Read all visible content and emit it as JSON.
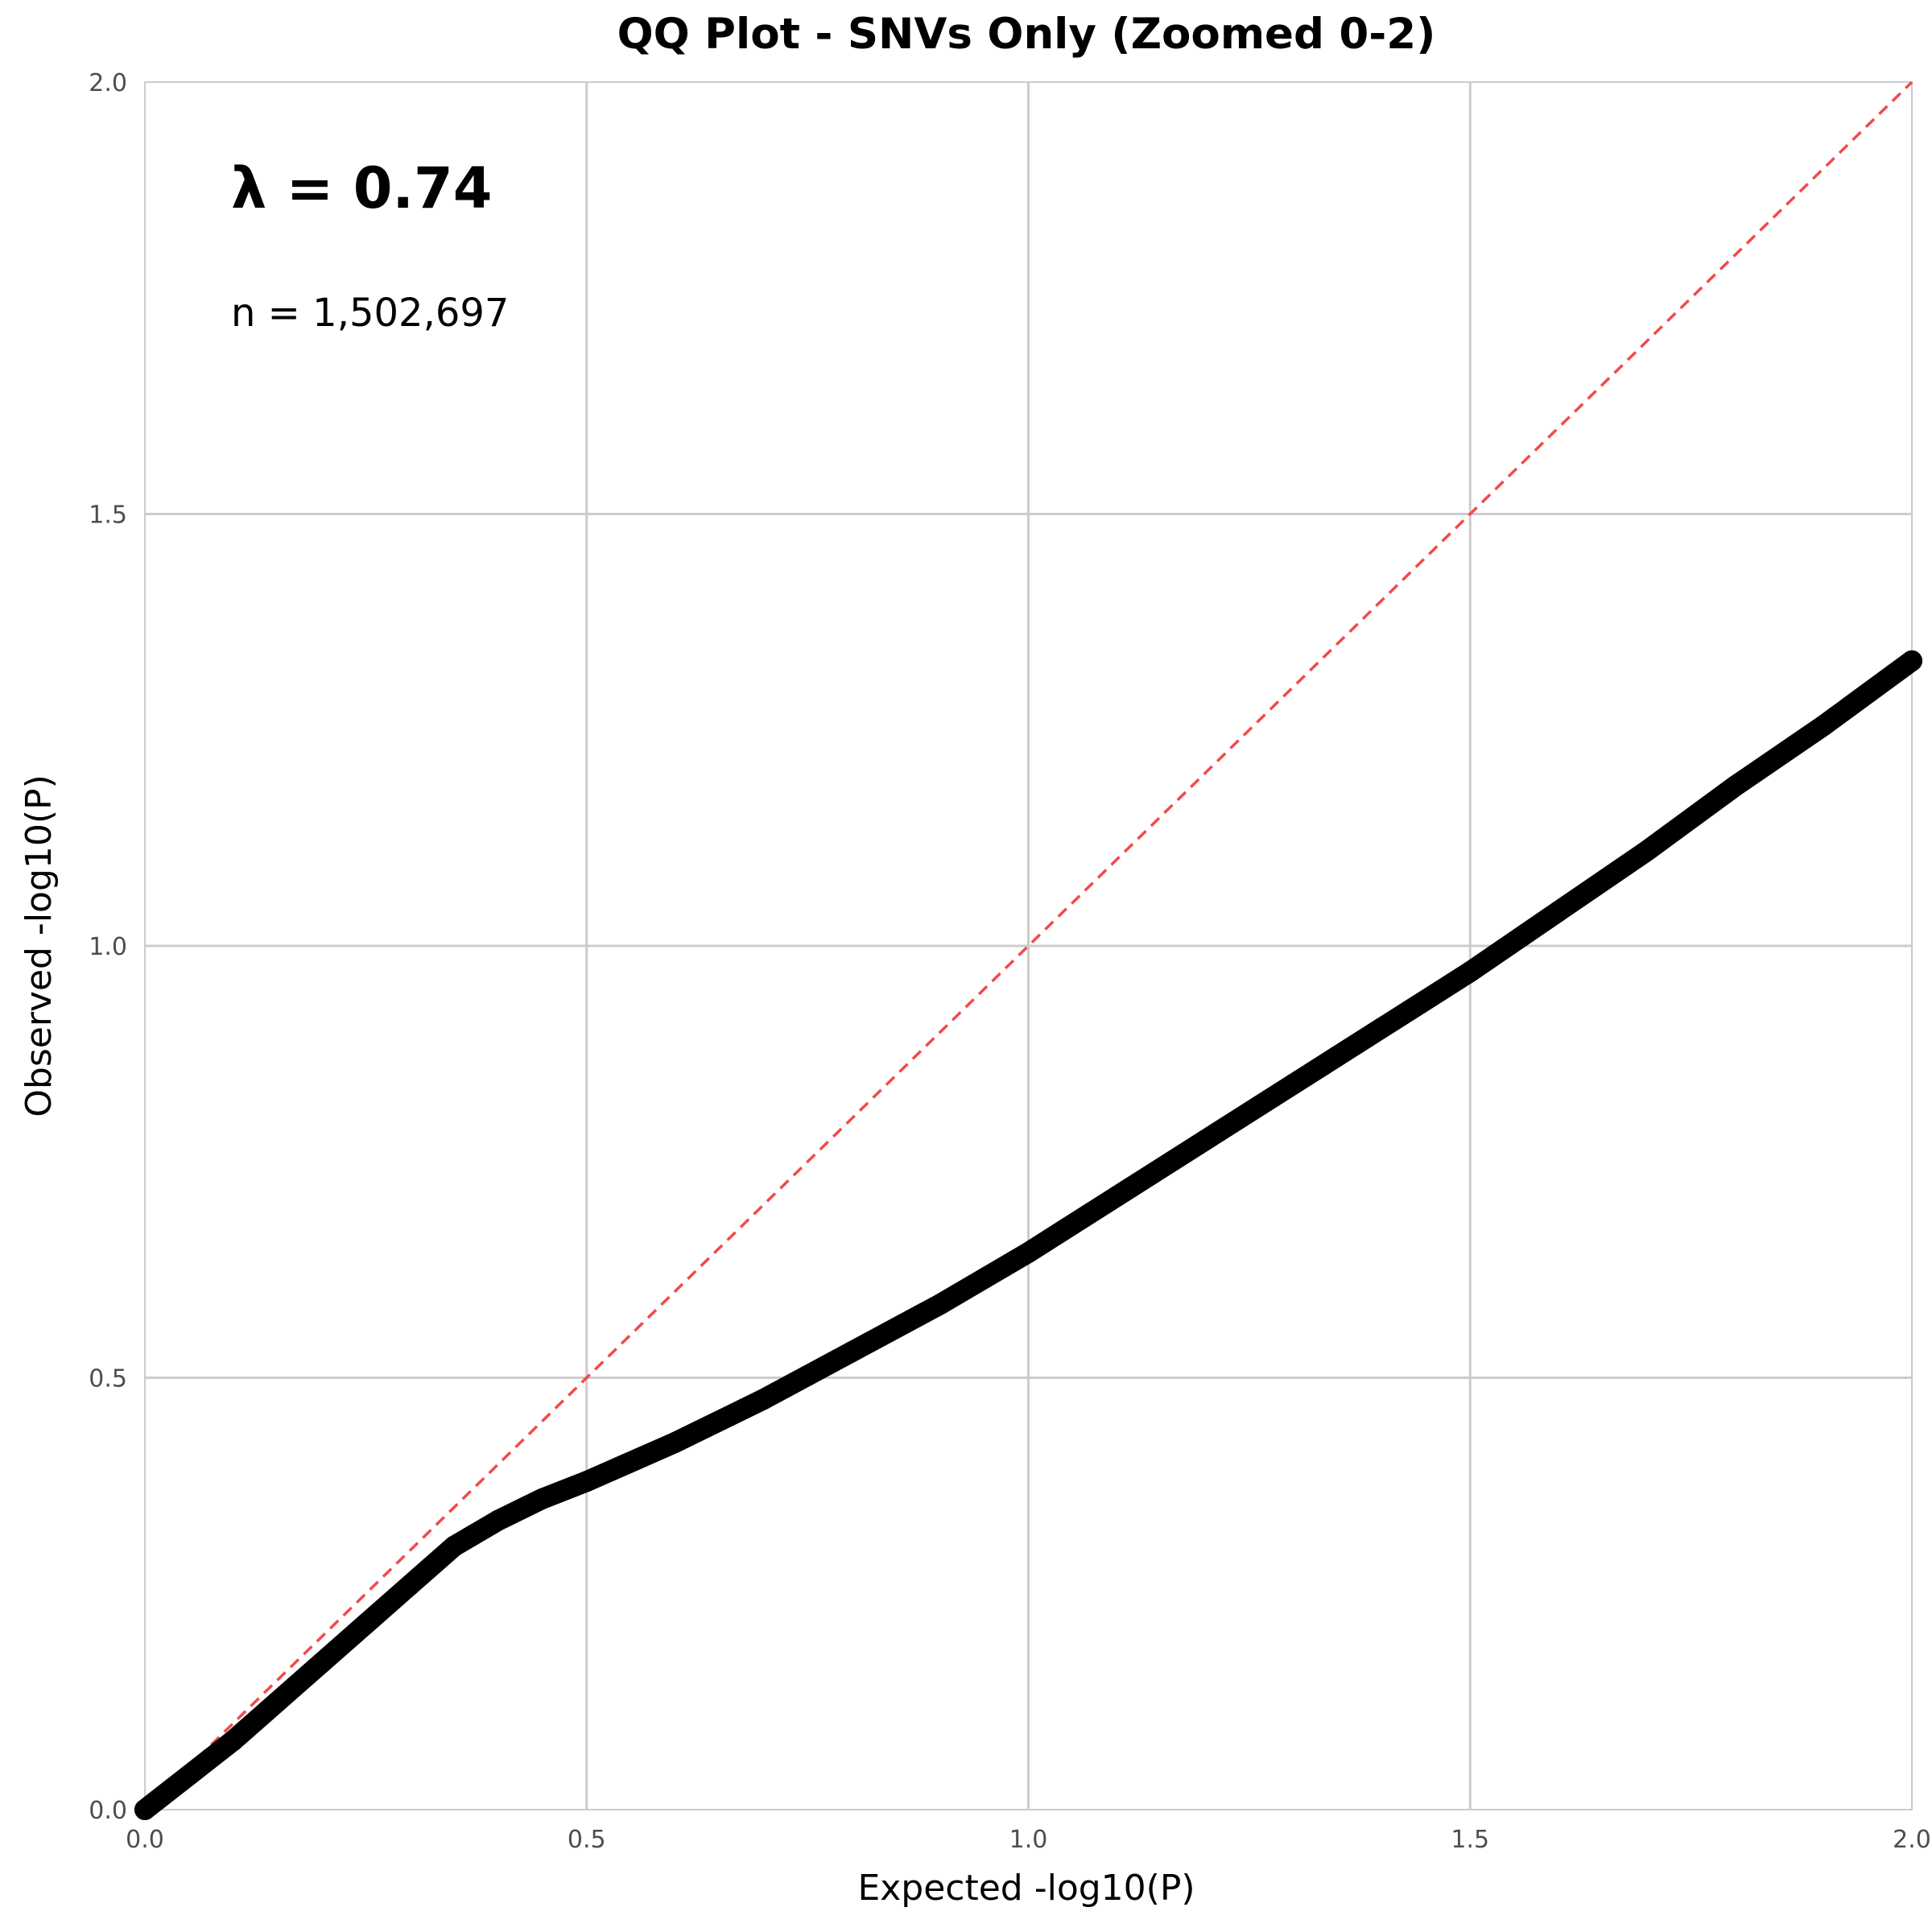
{
  "chart_data": {
    "type": "scatter",
    "title": "QQ Plot - SNVs Only (Zoomed 0-2)",
    "xlabel": "Expected -log10(P)",
    "ylabel": "Observed -log10(P)",
    "xlim": [
      0,
      2
    ],
    "ylim": [
      0,
      2
    ],
    "xticks": [
      "0.0",
      "0.5",
      "1.0",
      "1.5",
      "2.0"
    ],
    "yticks": [
      "0.0",
      "0.5",
      "1.0",
      "1.5",
      "2.0"
    ],
    "grid": true,
    "annotations": {
      "lambda": "λ = 0.74",
      "n": "n = 1,502,697"
    },
    "series": [
      {
        "color": "#000000",
        "x": [
          0.0,
          0.05,
          0.1,
          0.15,
          0.2,
          0.25,
          0.3,
          0.35,
          0.4,
          0.45,
          0.5,
          0.6,
          0.7,
          0.8,
          0.9,
          1.0,
          1.1,
          1.2,
          1.3,
          1.4,
          1.5,
          1.6,
          1.7,
          1.8,
          1.9,
          2.0
        ],
        "y": [
          0.0,
          0.04,
          0.08,
          0.125,
          0.17,
          0.215,
          0.26,
          0.305,
          0.335,
          0.36,
          0.38,
          0.425,
          0.475,
          0.53,
          0.585,
          0.645,
          0.71,
          0.775,
          0.84,
          0.905,
          0.97,
          1.04,
          1.11,
          1.185,
          1.255,
          1.33
        ]
      }
    ],
    "reference_line": {
      "x": [
        0,
        2
      ],
      "y": [
        0,
        2
      ],
      "color": "#f24a4a",
      "style": "dashed"
    },
    "grid_color": "#cccccc"
  }
}
